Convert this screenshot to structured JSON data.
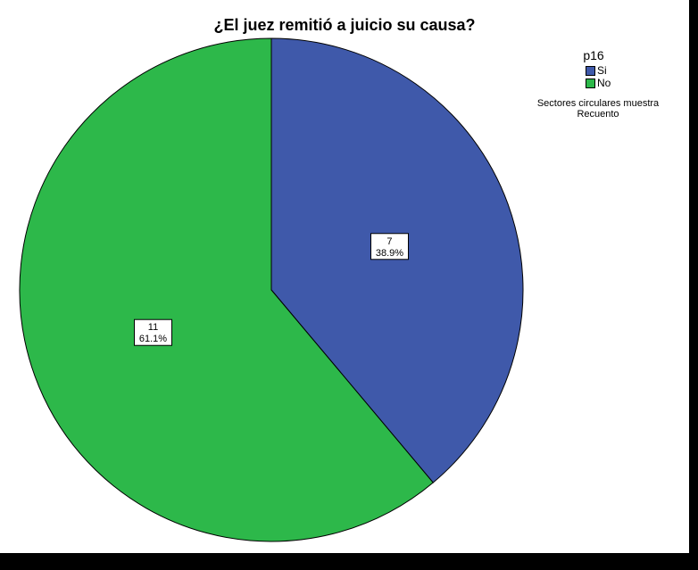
{
  "chart_data": {
    "type": "pie",
    "title": "¿El juez remitió a juicio su causa?",
    "legend_title": "p16",
    "legend_position": "top-right",
    "note_lines": [
      "Sectores circulares muestra",
      "Recuento"
    ],
    "slices": [
      {
        "label": "Si",
        "value": 7,
        "percent": "38.9%",
        "color": "#3f59aa"
      },
      {
        "label": "No",
        "value": 11,
        "percent": "61.1%",
        "color": "#2db84a"
      }
    ]
  }
}
